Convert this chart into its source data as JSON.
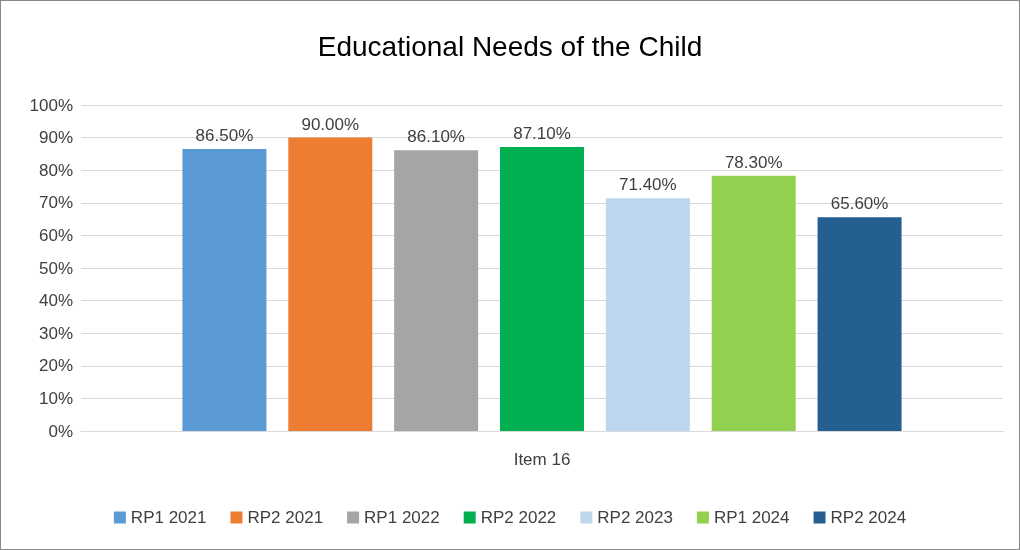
{
  "chart_data": {
    "type": "bar",
    "title": "Educational Needs of the Child",
    "categories": [
      "Item 16"
    ],
    "series": [
      {
        "name": "RP1 2021",
        "color": "#5b9bd5",
        "values": [
          86.5
        ],
        "value_labels": [
          "86.50%"
        ]
      },
      {
        "name": "RP2 2021",
        "color": "#ed7d31",
        "values": [
          90.0
        ],
        "value_labels": [
          "90.00%"
        ]
      },
      {
        "name": "RP1 2022",
        "color": "#a5a5a5",
        "values": [
          86.1
        ],
        "value_labels": [
          "86.10%"
        ]
      },
      {
        "name": "RP2 2022",
        "color": "#00b050",
        "values": [
          87.1
        ],
        "value_labels": [
          "87.10%"
        ]
      },
      {
        "name": "RP2 2023",
        "color": "#bdd7ee",
        "values": [
          71.4
        ],
        "value_labels": [
          "71.40%"
        ]
      },
      {
        "name": "RP1 2024",
        "color": "#92d050",
        "values": [
          78.3
        ],
        "value_labels": [
          "78.30%"
        ]
      },
      {
        "name": "RP2 2024",
        "color": "#255e91",
        "values": [
          65.6
        ],
        "value_labels": [
          "65.60%"
        ]
      }
    ],
    "ylim": [
      0,
      100
    ],
    "yticks": [
      {
        "value": 0,
        "label": "0%"
      },
      {
        "value": 10,
        "label": "10%"
      },
      {
        "value": 20,
        "label": "20%"
      },
      {
        "value": 30,
        "label": "30%"
      },
      {
        "value": 40,
        "label": "40%"
      },
      {
        "value": 50,
        "label": "50%"
      },
      {
        "value": 60,
        "label": "60%"
      },
      {
        "value": 70,
        "label": "70%"
      },
      {
        "value": 80,
        "label": "80%"
      },
      {
        "value": 90,
        "label": "90%"
      },
      {
        "value": 100,
        "label": "100%"
      }
    ],
    "grid": "y",
    "legend": "bottom"
  }
}
